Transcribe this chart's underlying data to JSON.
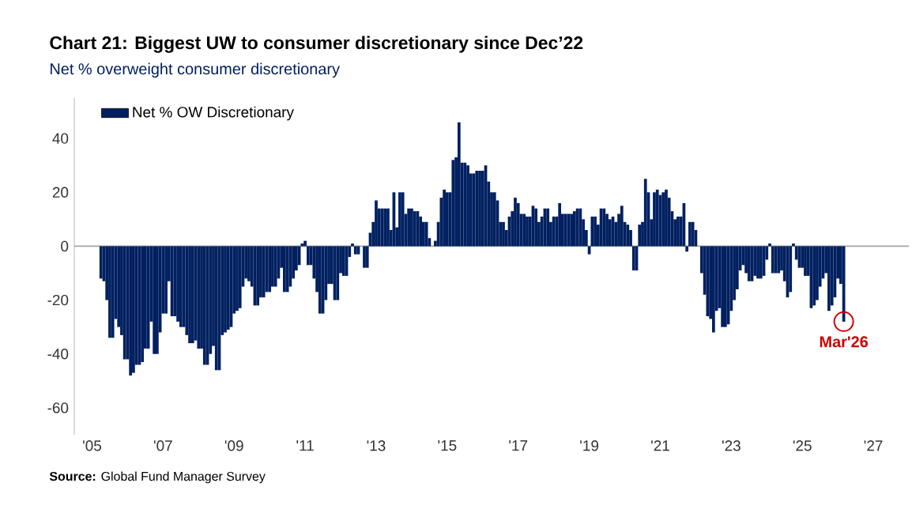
{
  "chart_data": {
    "type": "bar",
    "title": "Chart 21: Biggest UW to consumer discretionary since Dec’22",
    "subtitle": "Net % overweight consumer discretionary",
    "x": [
      "2005-04",
      "2005-05",
      "2005-06",
      "2005-07",
      "2005-08",
      "2005-09",
      "2005-10",
      "2005-11",
      "2005-12",
      "2006-01",
      "2006-02",
      "2006-03",
      "2006-04",
      "2006-05",
      "2006-06",
      "2006-07",
      "2006-08",
      "2006-09",
      "2006-10",
      "2006-11",
      "2006-12",
      "2007-01",
      "2007-02",
      "2007-03",
      "2007-04",
      "2007-05",
      "2007-06",
      "2007-07",
      "2007-08",
      "2007-09",
      "2007-10",
      "2007-11",
      "2007-12",
      "2008-01",
      "2008-02",
      "2008-03",
      "2008-04",
      "2008-05",
      "2008-06",
      "2008-07",
      "2008-08",
      "2008-09",
      "2008-10",
      "2008-11",
      "2008-12",
      "2009-01",
      "2009-02",
      "2009-03",
      "2009-04",
      "2009-05",
      "2009-06",
      "2009-07",
      "2009-08",
      "2009-09",
      "2009-10",
      "2009-11",
      "2009-12",
      "2010-01",
      "2010-02",
      "2010-03",
      "2010-04",
      "2010-05",
      "2010-06",
      "2010-07",
      "2010-08",
      "2010-09",
      "2010-10",
      "2010-11",
      "2010-12",
      "2011-01",
      "2011-02",
      "2011-03",
      "2011-04",
      "2011-05",
      "2011-06",
      "2011-07",
      "2011-08",
      "2011-09",
      "2011-10",
      "2011-11",
      "2011-12",
      "2012-01",
      "2012-02",
      "2012-03",
      "2012-04",
      "2012-05",
      "2012-06",
      "2012-07",
      "2012-08",
      "2012-09",
      "2012-10",
      "2012-11",
      "2012-12",
      "2013-01",
      "2013-02",
      "2013-03",
      "2013-04",
      "2013-05",
      "2013-06",
      "2013-07",
      "2013-08",
      "2013-09",
      "2013-10",
      "2013-11",
      "2013-12",
      "2014-01",
      "2014-02",
      "2014-03",
      "2014-04",
      "2014-05",
      "2014-06",
      "2014-07",
      "2014-08",
      "2014-09",
      "2014-10",
      "2014-11",
      "2014-12",
      "2015-01",
      "2015-02",
      "2015-03",
      "2015-04",
      "2015-05",
      "2015-06",
      "2015-07",
      "2015-08",
      "2015-09",
      "2015-10",
      "2015-11",
      "2015-12",
      "2016-01",
      "2016-02",
      "2016-03",
      "2016-04",
      "2016-05",
      "2016-06",
      "2016-07",
      "2016-08",
      "2016-09",
      "2016-10",
      "2016-11",
      "2016-12",
      "2017-01",
      "2017-02",
      "2017-03",
      "2017-04",
      "2017-05",
      "2017-06",
      "2017-07",
      "2017-08",
      "2017-09",
      "2017-10",
      "2017-11",
      "2017-12",
      "2018-01",
      "2018-02",
      "2018-03",
      "2018-04",
      "2018-05",
      "2018-06",
      "2018-07",
      "2018-08",
      "2018-09",
      "2018-10",
      "2018-11",
      "2018-12",
      "2019-01",
      "2019-02",
      "2019-03",
      "2019-04",
      "2019-05",
      "2019-06",
      "2019-07",
      "2019-08",
      "2019-09",
      "2019-10",
      "2019-11",
      "2019-12",
      "2020-01",
      "2020-02",
      "2020-03",
      "2020-04",
      "2020-05",
      "2020-06",
      "2020-07",
      "2020-08",
      "2020-09",
      "2020-10",
      "2020-11",
      "2020-12",
      "2021-01",
      "2021-02",
      "2021-03",
      "2021-04",
      "2021-05",
      "2021-06",
      "2021-07",
      "2021-08",
      "2021-09",
      "2021-10",
      "2021-11",
      "2021-12",
      "2022-01",
      "2022-02",
      "2022-03",
      "2022-04",
      "2022-05",
      "2022-06",
      "2022-07",
      "2022-08",
      "2022-09",
      "2022-10",
      "2022-11",
      "2022-12",
      "2023-01",
      "2023-02",
      "2023-03",
      "2023-04",
      "2023-05",
      "2023-06",
      "2023-07",
      "2023-08",
      "2023-09",
      "2023-10",
      "2023-11",
      "2023-12",
      "2024-01",
      "2024-02",
      "2024-03",
      "2024-04",
      "2024-05",
      "2024-06",
      "2024-07",
      "2024-08",
      "2024-09",
      "2024-10",
      "2024-11",
      "2024-12",
      "2025-01",
      "2025-02",
      "2025-03",
      "2025-04",
      "2025-05",
      "2025-06",
      "2025-07",
      "2025-08",
      "2025-09",
      "2025-10",
      "2025-11",
      "2025-12",
      "2026-01",
      "2026-02",
      "2026-03"
    ],
    "series": [
      {
        "name": "Net % OW Discretionary",
        "color": "#002060",
        "values": [
          -12,
          -13,
          -20,
          -34,
          -34,
          -27,
          -30,
          -33,
          -42,
          -42,
          -48,
          -47,
          -44,
          -44,
          -43,
          -38,
          -38,
          -28,
          -40,
          -40,
          -32,
          -25,
          -25,
          -13,
          -26,
          -26,
          -28,
          -30,
          -30,
          -33,
          -36,
          -36,
          -35,
          -38,
          -38,
          -44,
          -44,
          -40,
          -37,
          -46,
          -46,
          -33,
          -32,
          -31,
          -30,
          -25,
          -24,
          -23,
          -15,
          -12,
          -13,
          -15,
          -22,
          -22,
          -19,
          -19,
          -17,
          -17,
          -15,
          -15,
          -12,
          -8,
          -17,
          -17,
          -15,
          -12,
          -9,
          -7,
          1,
          2,
          -7,
          -7,
          -12,
          -17,
          -25,
          -25,
          -20,
          -14,
          -14,
          -20,
          -20,
          -10,
          -11,
          -11,
          -4,
          1,
          -3,
          -3,
          0,
          -8,
          -8,
          5,
          9,
          17,
          14,
          14,
          14,
          14,
          6,
          20,
          7,
          20,
          20,
          12,
          14,
          14,
          13,
          13,
          11,
          9,
          9,
          3,
          0,
          2,
          9,
          18,
          21,
          20,
          20,
          32,
          33,
          46,
          31,
          31,
          30,
          27,
          27,
          28,
          28,
          28,
          30,
          24,
          20,
          20,
          17,
          9,
          9,
          6,
          11,
          13,
          18,
          16,
          12,
          12,
          11,
          11,
          15,
          14,
          9,
          11,
          14,
          14,
          9,
          11,
          11,
          16,
          12,
          12,
          12,
          12,
          13,
          14,
          14,
          10,
          6,
          -3,
          11,
          11,
          8,
          14,
          14,
          12,
          10,
          11,
          9,
          12,
          15,
          9,
          8,
          6,
          -9,
          -9,
          8,
          9,
          25,
          20,
          10,
          20,
          21,
          19,
          20,
          21,
          18,
          13,
          10,
          11,
          11,
          16,
          -2,
          9,
          9,
          6,
          0,
          -10,
          -18,
          -26,
          -27,
          -32,
          -24,
          -23,
          -30,
          -30,
          -29,
          -24,
          -20,
          -16,
          -9,
          -7,
          -10,
          -13,
          -13,
          -11,
          -12,
          -12,
          -11,
          -5,
          1,
          -10,
          -10,
          -10,
          -9,
          -13,
          -19,
          -17,
          1,
          -5,
          -8,
          -8,
          -11,
          -11,
          -23,
          -22,
          -20,
          -15,
          -12,
          -10,
          -24,
          -22,
          -19,
          -12,
          -14,
          -28
        ]
      }
    ],
    "xlim": [
      "2004-07",
      "2028-01"
    ],
    "ylim": [
      -70,
      55
    ],
    "xticks": [
      {
        "value": "2005-01",
        "label": "'05"
      },
      {
        "value": "2007-01",
        "label": "'07"
      },
      {
        "value": "2009-01",
        "label": "'09"
      },
      {
        "value": "2011-01",
        "label": "'11"
      },
      {
        "value": "2013-01",
        "label": "'13"
      },
      {
        "value": "2015-01",
        "label": "'15"
      },
      {
        "value": "2017-01",
        "label": "'17"
      },
      {
        "value": "2019-01",
        "label": "'19"
      },
      {
        "value": "2021-01",
        "label": "'21"
      },
      {
        "value": "2023-01",
        "label": "'23"
      },
      {
        "value": "2025-01",
        "label": "'25"
      },
      {
        "value": "2027-01",
        "label": "'27"
      }
    ],
    "yticks": [
      -60,
      -40,
      -20,
      0,
      20,
      40
    ],
    "legend": "top left",
    "annotations": [
      {
        "text": "Mar'26",
        "x": "2026-03",
        "y": -28
      },
      "**Source:** Global Fund Manager Survey"
    ]
  }
}
